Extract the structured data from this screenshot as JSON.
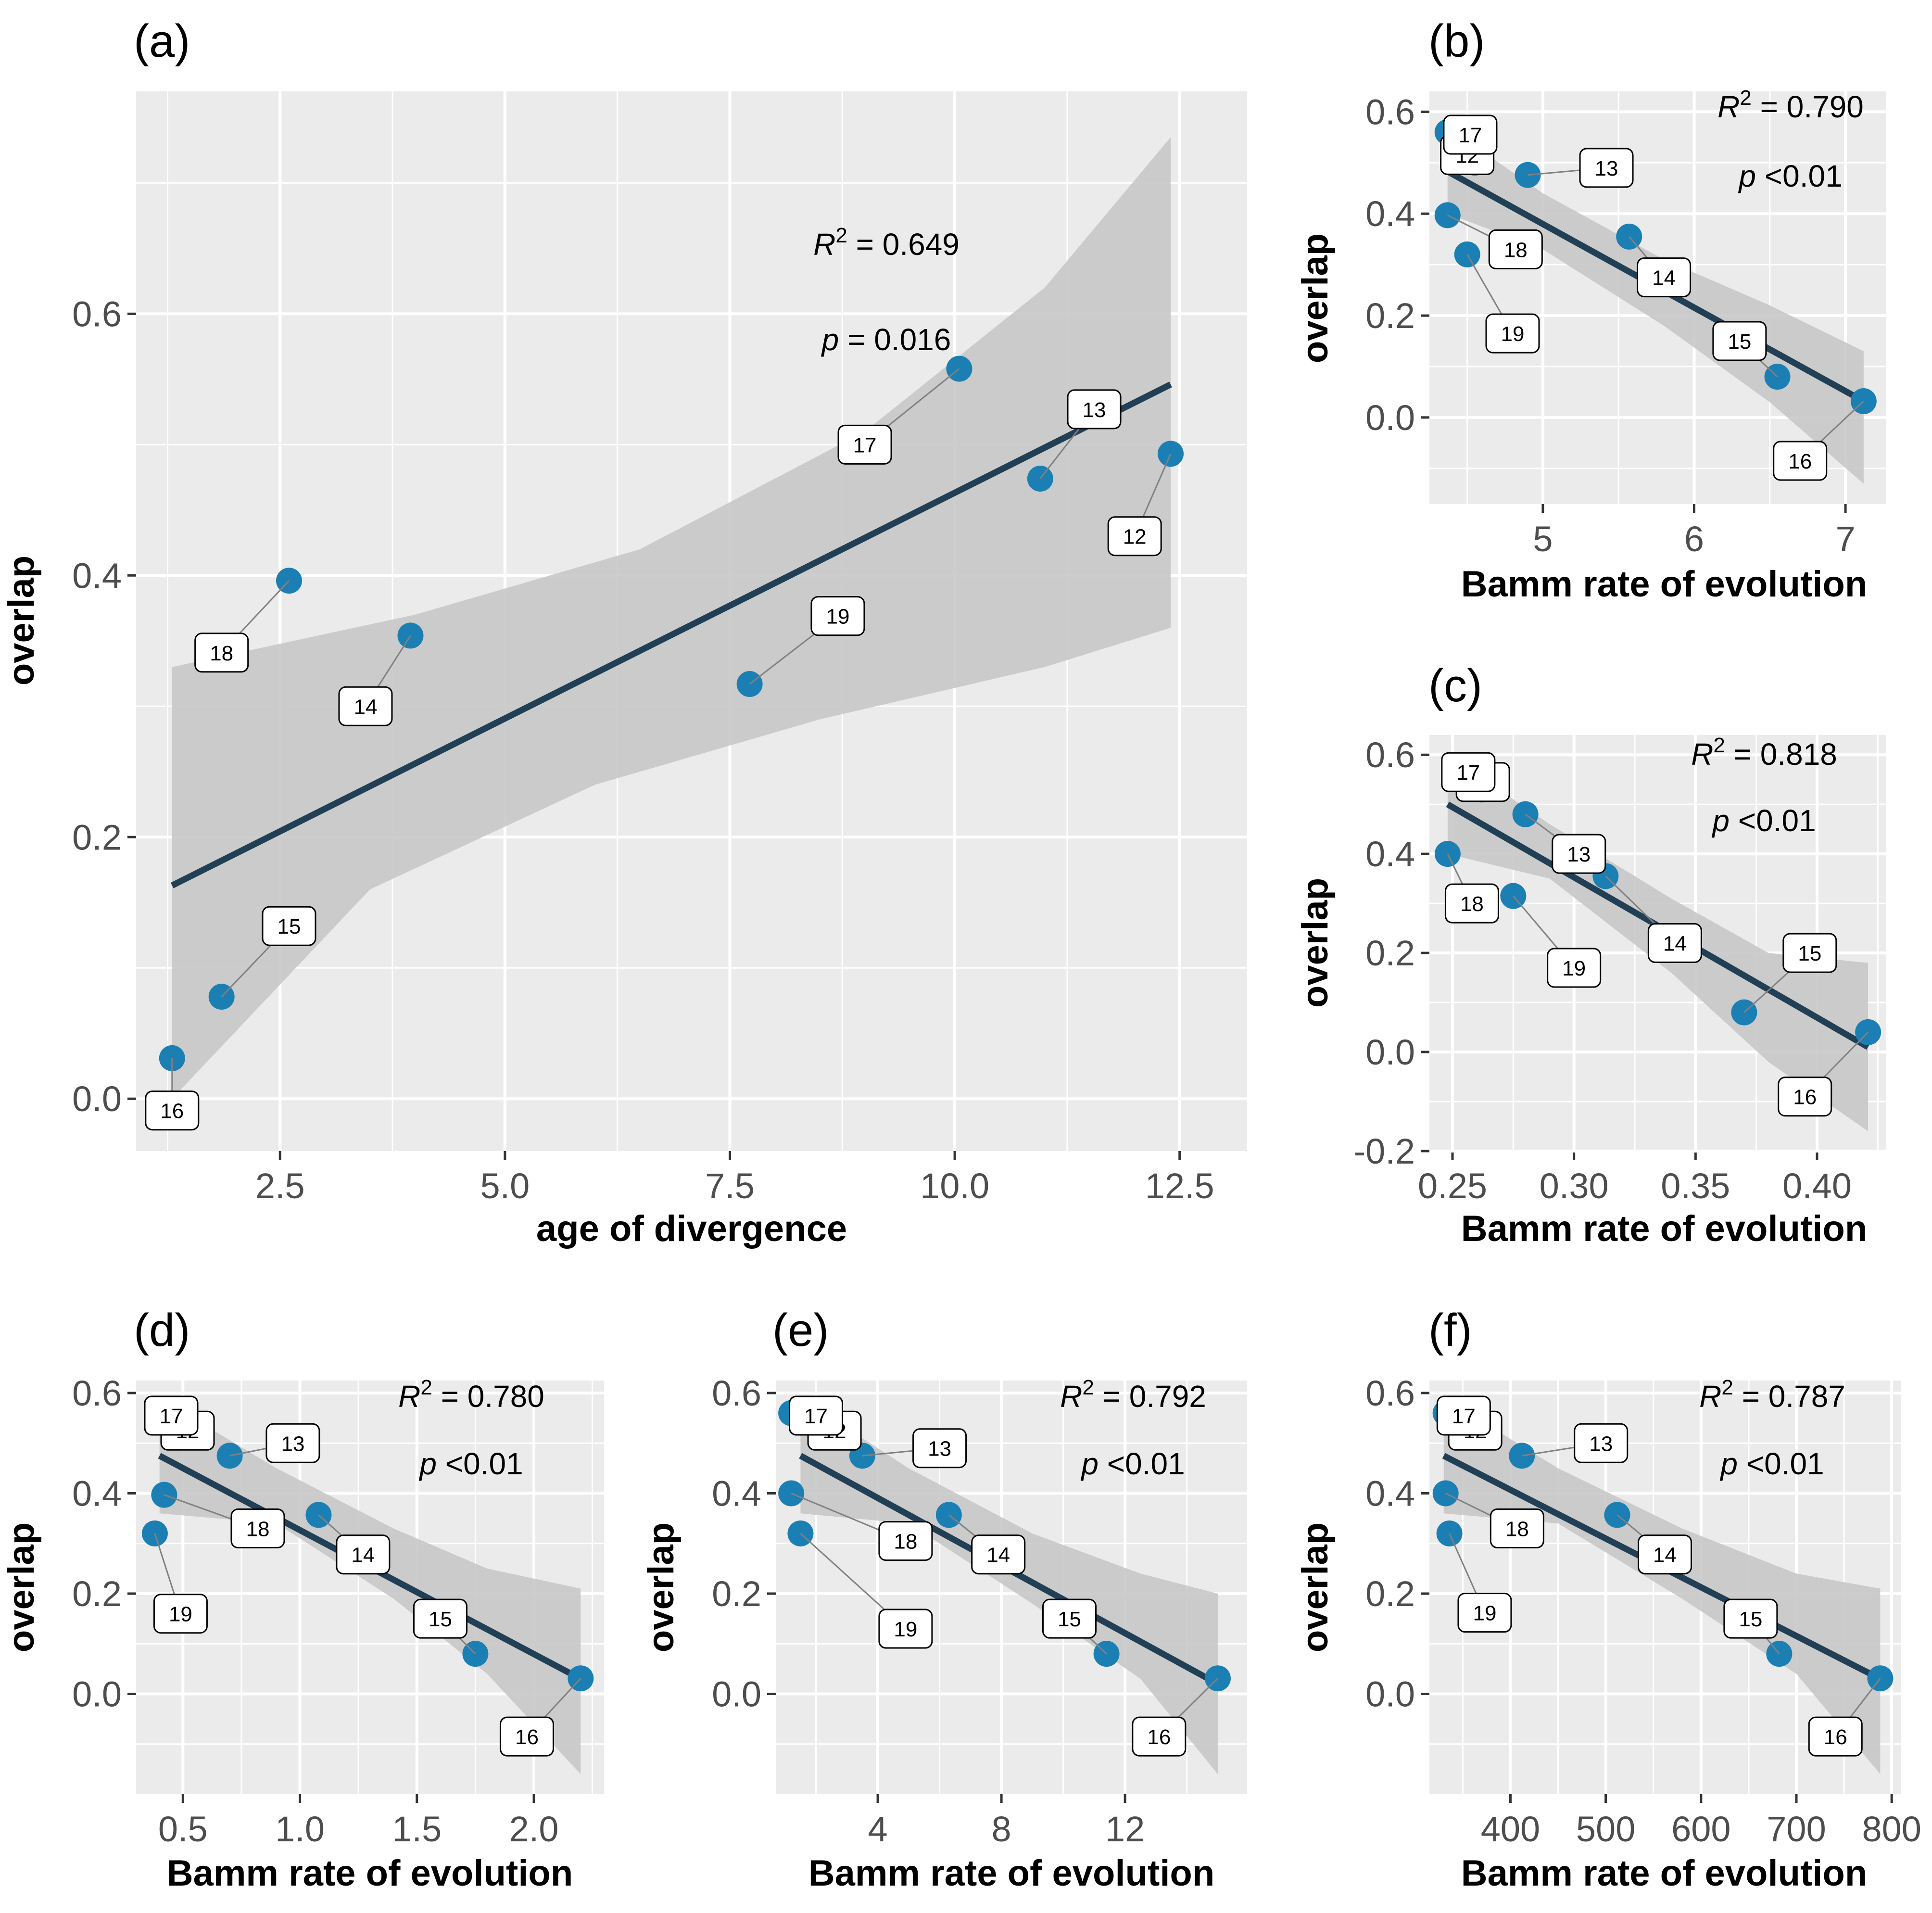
{
  "colors": {
    "panel_bg": "#ebebeb",
    "grid": "#ffffff",
    "ribbon": "#c8c8c8",
    "fit_line": "#213f55",
    "point": "#1b7fb3"
  },
  "chart_data": [
    {
      "id": "a",
      "type": "scatter",
      "panel_label": "(a)",
      "xlabel": "age of divergence",
      "ylabel": "overlap",
      "xlim": [
        0.9,
        13.25
      ],
      "ylim": [
        -0.04,
        0.77
      ],
      "xticks": [
        2.5,
        5.0,
        7.5,
        10.0,
        12.5
      ],
      "xtick_labels": [
        "2.5",
        "5.0",
        "7.5",
        "10.0",
        "12.5"
      ],
      "yticks": [
        0.0,
        0.2,
        0.4,
        0.6
      ],
      "ytick_labels": [
        "0.0",
        "0.2",
        "0.4",
        "0.6"
      ],
      "r2_label": "R",
      "r2_value": " = 0.649",
      "p_label": "p",
      "p_value": " = 0.016",
      "fit": {
        "x0": 1.3,
        "y0": 0.163,
        "x1": 12.4,
        "y1": 0.546
      },
      "ci_upper": [
        [
          1.3,
          0.33
        ],
        [
          4.0,
          0.37
        ],
        [
          6.5,
          0.42
        ],
        [
          9.0,
          0.51
        ],
        [
          11.0,
          0.62
        ],
        [
          12.4,
          0.735
        ]
      ],
      "ci_lower": [
        [
          1.3,
          0.0
        ],
        [
          3.5,
          0.16
        ],
        [
          6.0,
          0.24
        ],
        [
          8.5,
          0.29
        ],
        [
          11.0,
          0.33
        ],
        [
          12.4,
          0.36
        ]
      ],
      "points": [
        {
          "label": "12",
          "x": 12.4,
          "y": 0.493,
          "lx": 12.0,
          "ly": 0.43
        },
        {
          "label": "13",
          "x": 10.95,
          "y": 0.474,
          "lx": 11.55,
          "ly": 0.527
        },
        {
          "label": "14",
          "x": 3.95,
          "y": 0.354,
          "lx": 3.45,
          "ly": 0.3
        },
        {
          "label": "15",
          "x": 1.85,
          "y": 0.078,
          "lx": 2.6,
          "ly": 0.132
        },
        {
          "label": "16",
          "x": 1.3,
          "y": 0.031,
          "lx": 1.3,
          "ly": -0.009
        },
        {
          "label": "17",
          "x": 10.05,
          "y": 0.558,
          "lx": 9.0,
          "ly": 0.5
        },
        {
          "label": "18",
          "x": 2.6,
          "y": 0.396,
          "lx": 1.85,
          "ly": 0.341
        },
        {
          "label": "19",
          "x": 7.72,
          "y": 0.317,
          "lx": 8.7,
          "ly": 0.369
        }
      ]
    },
    {
      "id": "b",
      "type": "scatter",
      "panel_label": "(b)",
      "xlabel": "Bamm rate of evolution",
      "ylabel": "overlap",
      "xlim": [
        4.25,
        7.27
      ],
      "ylim": [
        -0.17,
        0.64
      ],
      "xticks": [
        5,
        6,
        7
      ],
      "xtick_labels": [
        "5",
        "6",
        "7"
      ],
      "yticks": [
        0.0,
        0.2,
        0.4,
        0.6
      ],
      "ytick_labels": [
        "0.0",
        "0.2",
        "0.4",
        "0.6"
      ],
      "r2_label": "R",
      "r2_value": " = 0.790",
      "p_label": "p",
      "p_value": " <0.01",
      "fit": {
        "x0": 4.37,
        "y0": 0.483,
        "x1": 7.12,
        "y1": 0.032
      },
      "ci_upper": [
        [
          4.37,
          0.57
        ],
        [
          5.0,
          0.44
        ],
        [
          5.8,
          0.31
        ],
        [
          6.5,
          0.22
        ],
        [
          7.12,
          0.13
        ]
      ],
      "ci_lower": [
        [
          4.37,
          0.4
        ],
        [
          5.0,
          0.33
        ],
        [
          5.8,
          0.18
        ],
        [
          6.5,
          0.03
        ],
        [
          7.12,
          -0.13
        ]
      ],
      "points": [
        {
          "label": "12",
          "x": 4.55,
          "y": 0.5,
          "lx": 4.5,
          "ly": 0.515
        },
        {
          "label": "13",
          "x": 4.9,
          "y": 0.476,
          "lx": 5.42,
          "ly": 0.49
        },
        {
          "label": "14",
          "x": 5.57,
          "y": 0.355,
          "lx": 5.8,
          "ly": 0.275
        },
        {
          "label": "15",
          "x": 6.55,
          "y": 0.08,
          "lx": 6.3,
          "ly": 0.15
        },
        {
          "label": "16",
          "x": 7.12,
          "y": 0.032,
          "lx": 6.7,
          "ly": -0.085
        },
        {
          "label": "17",
          "x": 4.37,
          "y": 0.56,
          "lx": 4.52,
          "ly": 0.555
        },
        {
          "label": "18",
          "x": 4.37,
          "y": 0.397,
          "lx": 4.82,
          "ly": 0.33
        },
        {
          "label": "19",
          "x": 4.5,
          "y": 0.32,
          "lx": 4.8,
          "ly": 0.165
        }
      ]
    },
    {
      "id": "c",
      "type": "scatter",
      "panel_label": "(c)",
      "xlabel": "Bamm rate of evolution",
      "ylabel": "overlap",
      "xlim": [
        0.2405,
        0.4285
      ],
      "ylim": [
        -0.2,
        0.64
      ],
      "xticks": [
        0.25,
        0.3,
        0.35,
        0.4
      ],
      "xtick_labels": [
        "0.25",
        "0.30",
        "0.35",
        "0.40"
      ],
      "yticks": [
        -0.2,
        0.0,
        0.2,
        0.4,
        0.6
      ],
      "ytick_labels": [
        "-0.2",
        "0.0",
        "0.2",
        "0.4",
        "0.6"
      ],
      "r2_label": "R",
      "r2_value": " = 0.818",
      "p_label": "p",
      "p_value": " <0.01",
      "fit": {
        "x0": 0.248,
        "y0": 0.5,
        "x1": 0.421,
        "y1": 0.01
      },
      "ci_upper": [
        [
          0.248,
          0.6
        ],
        [
          0.29,
          0.46
        ],
        [
          0.34,
          0.31
        ],
        [
          0.38,
          0.2
        ],
        [
          0.421,
          0.18
        ]
      ],
      "ci_lower": [
        [
          0.248,
          0.4
        ],
        [
          0.29,
          0.35
        ],
        [
          0.34,
          0.16
        ],
        [
          0.38,
          -0.02
        ],
        [
          0.421,
          -0.16
        ]
      ],
      "points": [
        {
          "label": "12",
          "x": 0.262,
          "y": 0.53,
          "lx": 0.2625,
          "ly": 0.545
        },
        {
          "label": "13",
          "x": 0.28,
          "y": 0.48,
          "lx": 0.302,
          "ly": 0.4
        },
        {
          "label": "14",
          "x": 0.313,
          "y": 0.355,
          "lx": 0.3415,
          "ly": 0.22
        },
        {
          "label": "15",
          "x": 0.37,
          "y": 0.08,
          "lx": 0.397,
          "ly": 0.2
        },
        {
          "label": "16",
          "x": 0.421,
          "y": 0.04,
          "lx": 0.395,
          "ly": -0.09
        },
        {
          "label": "17",
          "x": 0.256,
          "y": 0.56,
          "lx": 0.2565,
          "ly": 0.565
        },
        {
          "label": "18",
          "x": 0.248,
          "y": 0.4,
          "lx": 0.258,
          "ly": 0.3
        },
        {
          "label": "19",
          "x": 0.275,
          "y": 0.315,
          "lx": 0.3,
          "ly": 0.17
        }
      ]
    },
    {
      "id": "d",
      "type": "scatter",
      "panel_label": "(d)",
      "xlabel": "Bamm rate of evolution",
      "ylabel": "overlap",
      "xlim": [
        0.3,
        2.3
      ],
      "ylim": [
        -0.2,
        0.625
      ],
      "xticks": [
        0.5,
        1.0,
        1.5,
        2.0
      ],
      "xtick_labels": [
        "0.5",
        "1.0",
        "1.5",
        "2.0"
      ],
      "yticks": [
        0.0,
        0.2,
        0.4,
        0.6
      ],
      "ytick_labels": [
        "0.0",
        "0.2",
        "0.4",
        "0.6"
      ],
      "r2_label": "R",
      "r2_value": " = 0.780",
      "p_label": "p",
      "p_value": " <0.01",
      "fit": {
        "x0": 0.4,
        "y0": 0.475,
        "x1": 2.2,
        "y1": 0.03
      },
      "ci_upper": [
        [
          0.4,
          0.59
        ],
        [
          0.9,
          0.45
        ],
        [
          1.4,
          0.33
        ],
        [
          1.8,
          0.25
        ],
        [
          2.2,
          0.21
        ]
      ],
      "ci_lower": [
        [
          0.4,
          0.36
        ],
        [
          0.9,
          0.34
        ],
        [
          1.4,
          0.19
        ],
        [
          1.8,
          0.04
        ],
        [
          2.2,
          -0.16
        ]
      ],
      "points": [
        {
          "label": "12",
          "x": 0.5,
          "y": 0.52,
          "lx": 0.52,
          "ly": 0.525
        },
        {
          "label": "13",
          "x": 0.7,
          "y": 0.475,
          "lx": 0.97,
          "ly": 0.5
        },
        {
          "label": "14",
          "x": 1.08,
          "y": 0.357,
          "lx": 1.27,
          "ly": 0.278
        },
        {
          "label": "15",
          "x": 1.75,
          "y": 0.08,
          "lx": 1.6,
          "ly": 0.15
        },
        {
          "label": "16",
          "x": 2.2,
          "y": 0.031,
          "lx": 1.97,
          "ly": -0.085
        },
        {
          "label": "17",
          "x": 0.4,
          "y": 0.56,
          "lx": 0.45,
          "ly": 0.555
        },
        {
          "label": "18",
          "x": 0.42,
          "y": 0.397,
          "lx": 0.82,
          "ly": 0.33
        },
        {
          "label": "19",
          "x": 0.38,
          "y": 0.32,
          "lx": 0.49,
          "ly": 0.16
        }
      ]
    },
    {
      "id": "e",
      "type": "scatter",
      "panel_label": "(e)",
      "xlabel": "Bamm rate of evolution",
      "ylabel": "overlap",
      "xlim": [
        0.7,
        15.95
      ],
      "ylim": [
        -0.2,
        0.625
      ],
      "xticks": [
        4,
        8,
        12
      ],
      "xtick_labels": [
        "4",
        "8",
        "12"
      ],
      "yticks": [
        0.0,
        0.2,
        0.4,
        0.6
      ],
      "ytick_labels": [
        "0.0",
        "0.2",
        "0.4",
        "0.6"
      ],
      "r2_label": "R",
      "r2_value": " = 0.792",
      "p_label": "p",
      "p_value": " <0.01",
      "fit": {
        "x0": 1.5,
        "y0": 0.475,
        "x1": 15.0,
        "y1": 0.02
      },
      "ci_upper": [
        [
          1.5,
          0.59
        ],
        [
          5.0,
          0.45
        ],
        [
          9.0,
          0.32
        ],
        [
          12.5,
          0.24
        ],
        [
          15.0,
          0.2
        ]
      ],
      "ci_lower": [
        [
          1.5,
          0.36
        ],
        [
          5.0,
          0.34
        ],
        [
          9.0,
          0.18
        ],
        [
          12.5,
          0.03
        ],
        [
          15.0,
          -0.16
        ]
      ],
      "points": [
        {
          "label": "12",
          "x": 2.5,
          "y": 0.52,
          "lx": 2.6,
          "ly": 0.525
        },
        {
          "label": "13",
          "x": 3.5,
          "y": 0.475,
          "lx": 6.0,
          "ly": 0.49
        },
        {
          "label": "14",
          "x": 6.3,
          "y": 0.357,
          "lx": 7.9,
          "ly": 0.278
        },
        {
          "label": "15",
          "x": 11.4,
          "y": 0.08,
          "lx": 10.2,
          "ly": 0.15
        },
        {
          "label": "16",
          "x": 15.0,
          "y": 0.031,
          "lx": 13.1,
          "ly": -0.085
        },
        {
          "label": "17",
          "x": 1.2,
          "y": 0.56,
          "lx": 2.0,
          "ly": 0.555
        },
        {
          "label": "18",
          "x": 1.2,
          "y": 0.4,
          "lx": 4.9,
          "ly": 0.305
        },
        {
          "label": "19",
          "x": 1.5,
          "y": 0.32,
          "lx": 4.9,
          "ly": 0.13
        }
      ]
    },
    {
      "id": "f",
      "type": "scatter",
      "panel_label": "(f)",
      "xlabel": "Bamm rate of evolution",
      "ylabel": "overlap",
      "xlim": [
        315,
        810
      ],
      "ylim": [
        -0.2,
        0.625
      ],
      "xticks": [
        400,
        500,
        600,
        700,
        800
      ],
      "xtick_labels": [
        "400",
        "500",
        "600",
        "700",
        "800"
      ],
      "yticks": [
        0.0,
        0.2,
        0.4,
        0.6
      ],
      "ytick_labels": [
        "0.0",
        "0.2",
        "0.4",
        "0.6"
      ],
      "r2_label": "R",
      "r2_value": " = 0.787",
      "p_label": "p",
      "p_value": " <0.01",
      "fit": {
        "x0": 330,
        "y0": 0.475,
        "x1": 788,
        "y1": 0.03
      },
      "ci_upper": [
        [
          330,
          0.59
        ],
        [
          450,
          0.45
        ],
        [
          580,
          0.33
        ],
        [
          700,
          0.24
        ],
        [
          788,
          0.21
        ]
      ],
      "ci_lower": [
        [
          330,
          0.36
        ],
        [
          450,
          0.34
        ],
        [
          580,
          0.19
        ],
        [
          700,
          0.04
        ],
        [
          788,
          -0.16
        ]
      ],
      "points": [
        {
          "label": "12",
          "x": 360,
          "y": 0.52,
          "lx": 363,
          "ly": 0.525
        },
        {
          "label": "13",
          "x": 412,
          "y": 0.475,
          "lx": 495,
          "ly": 0.5
        },
        {
          "label": "14",
          "x": 512,
          "y": 0.357,
          "lx": 562,
          "ly": 0.278
        },
        {
          "label": "15",
          "x": 682,
          "y": 0.08,
          "lx": 652,
          "ly": 0.15
        },
        {
          "label": "16",
          "x": 788,
          "y": 0.031,
          "lx": 741,
          "ly": -0.085
        },
        {
          "label": "17",
          "x": 332,
          "y": 0.56,
          "lx": 351,
          "ly": 0.555
        },
        {
          "label": "18",
          "x": 332,
          "y": 0.4,
          "lx": 407,
          "ly": 0.33
        },
        {
          "label": "19",
          "x": 336,
          "y": 0.32,
          "lx": 373,
          "ly": 0.162
        }
      ]
    }
  ]
}
